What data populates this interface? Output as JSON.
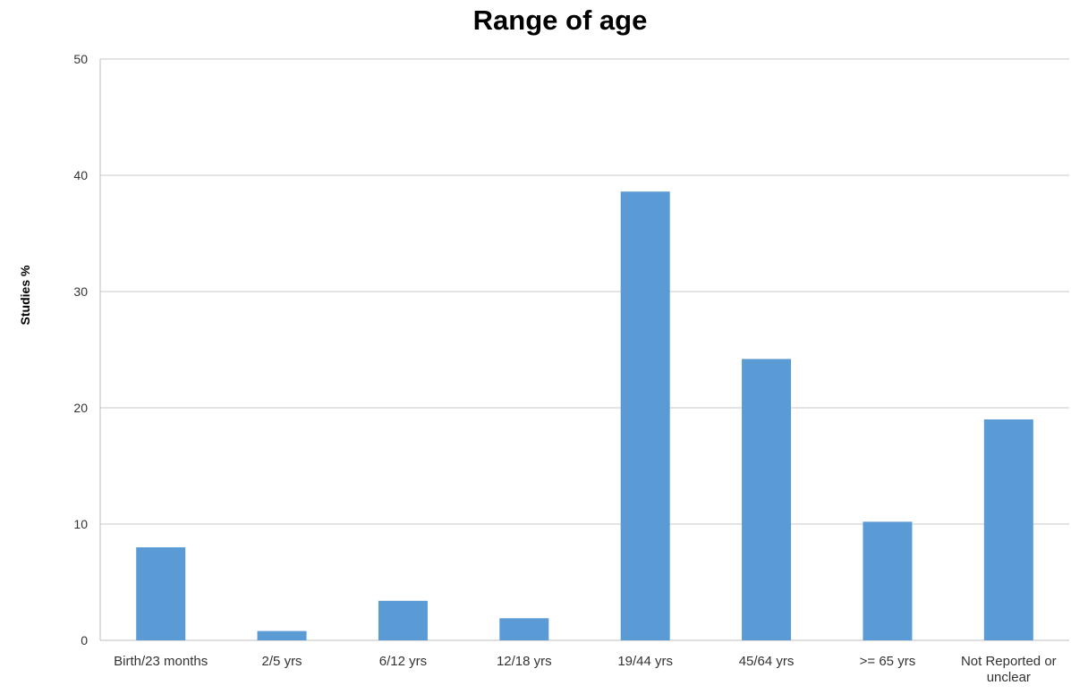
{
  "chart_data": {
    "type": "bar",
    "title": "Range of age",
    "xlabel": "",
    "ylabel": "Studies %",
    "ylim": [
      0,
      50
    ],
    "yticks": [
      "0",
      "10",
      "20",
      "30",
      "40",
      "50"
    ],
    "grid": true,
    "categories": [
      [
        "Birth/23 months"
      ],
      [
        "2/5 yrs"
      ],
      [
        "6/12 yrs"
      ],
      [
        "12/18 yrs"
      ],
      [
        "19/44 yrs"
      ],
      [
        "45/64 yrs"
      ],
      [
        ">= 65 yrs"
      ],
      [
        "Not Reported or",
        "unclear"
      ]
    ],
    "values": [
      8,
      0.8,
      3.4,
      1.9,
      38.6,
      24.2,
      10.2,
      19
    ],
    "bar_color": "#5b9bd5"
  }
}
